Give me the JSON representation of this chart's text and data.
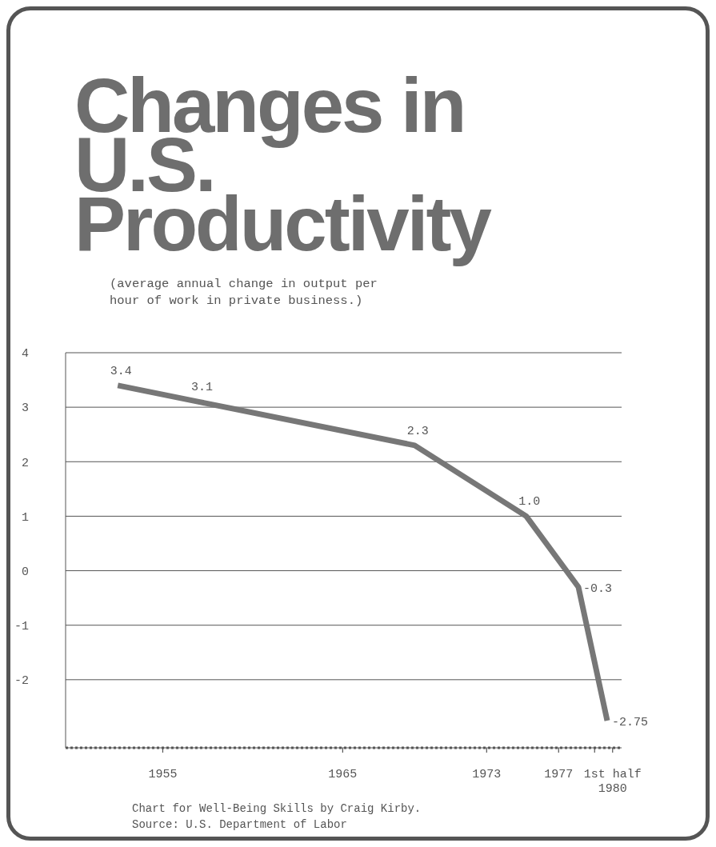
{
  "chart_data": {
    "type": "line",
    "title": "Changes in U.S. Productivity",
    "subtitle": "(average annual change in output per hour of work in private business.)",
    "x": [
      1952.5,
      1957,
      1969,
      1975.2,
      1978.1,
      1979.7
    ],
    "series": [
      {
        "color": "#777777",
        "values": [
          3.4,
          3.1,
          2.3,
          1.0,
          -0.3,
          -2.75
        ],
        "value_labels": [
          "3.4",
          "3.1",
          "2.3",
          "1.0",
          "-0.3",
          "-2.75"
        ]
      }
    ],
    "xlim": [
      1949.6,
      1980.5
    ],
    "xticks": [
      1955,
      1965,
      1973,
      1977,
      {
        "value": 1979,
        "label": null
      },
      {
        "value": 1980,
        "label": "1st half 1980"
      }
    ],
    "ylim": [
      -3.25,
      4
    ],
    "yticks": [
      -2,
      -1,
      0,
      1,
      2,
      3,
      4
    ],
    "grid": "y",
    "marker": "none",
    "line_style": "solid",
    "annotations": [
      "Chart for Well-Being Skills by Craig Kirby.",
      "Source: U.S. Department of Labor"
    ]
  }
}
